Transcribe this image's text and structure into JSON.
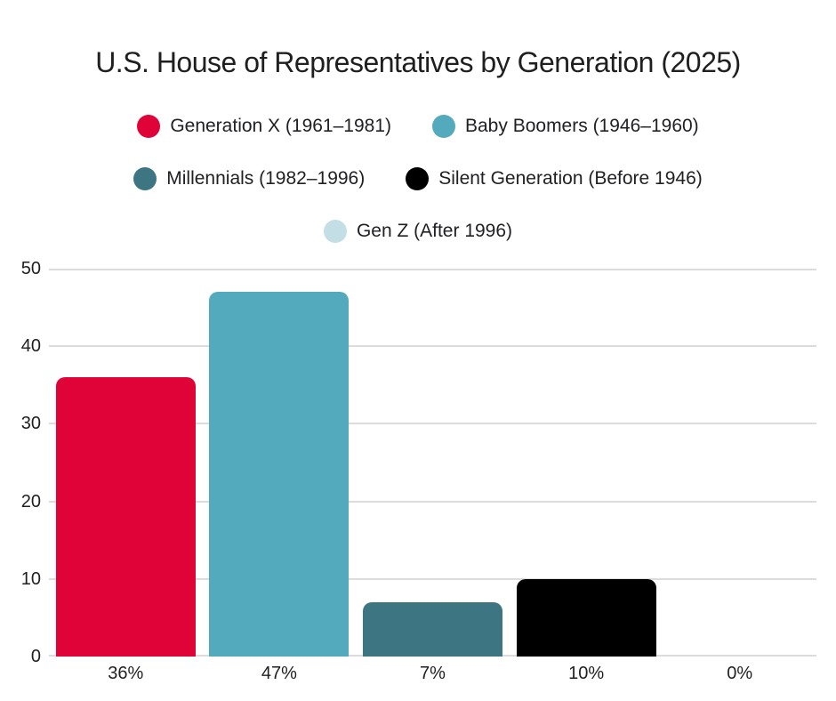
{
  "title": "U.S. House of Representatives by Generation (2025)",
  "legend": {
    "rows": [
      {
        "items": [
          {
            "label": "Generation X (1961–1981)",
            "color": "#e00338"
          },
          {
            "label": "Baby Boomers (1946–1960)",
            "color": "#54aabd"
          }
        ]
      },
      {
        "items": [
          {
            "label": "Millennials (1982–1996)",
            "color": "#3e7583"
          },
          {
            "label": "Silent Generation (Before 1946)",
            "color": "#000000"
          }
        ]
      },
      {
        "items": [
          {
            "label": "Gen Z (After 1996)",
            "color": "#c3dee5"
          }
        ]
      }
    ]
  },
  "chart_data": {
    "type": "bar",
    "title": "U.S. House of Representatives by Generation (2025)",
    "categories": [
      "Generation X (1961–1981)",
      "Baby Boomers (1946–1960)",
      "Millennials (1982–1996)",
      "Silent Generation (Before 1946)",
      "Gen Z (After 1996)"
    ],
    "values": [
      36,
      47,
      7,
      10,
      0
    ],
    "x_tick_labels": [
      "36%",
      "47%",
      "7%",
      "10%",
      "0%"
    ],
    "bar_colors": [
      "#e00338",
      "#54aabd",
      "#3e7583",
      "#000000",
      "#c3dee5"
    ],
    "ylim": [
      0,
      50
    ],
    "yticks": [
      0,
      10,
      20,
      30,
      40,
      50
    ],
    "xlabel": "",
    "ylabel": "",
    "grid": true,
    "legend_position": "top"
  },
  "colors": {
    "background": "#ffffff",
    "text": "#1f1f1f",
    "gridline": "#dcdcdc"
  }
}
